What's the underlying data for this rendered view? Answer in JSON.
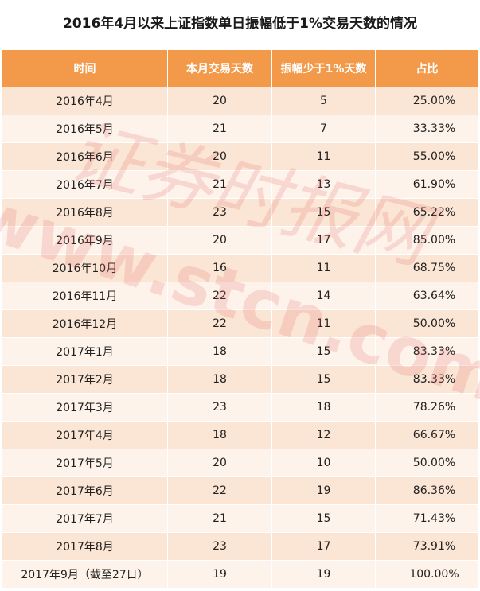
{
  "title": "2016年4月以来上证指数单日振幅低于1%交易天数的情况",
  "headers": [
    "时间",
    "本月交易天数",
    "振幅少于1%天数",
    "占比"
  ],
  "rows": [
    {
      "time": "2016年4月",
      "trading_days": "20",
      "low_amp_days": "5",
      "ratio": "25.00%"
    },
    {
      "time": "2016年5月",
      "trading_days": "21",
      "low_amp_days": "7",
      "ratio": "33.33%"
    },
    {
      "time": "2016年6月",
      "trading_days": "20",
      "low_amp_days": "11",
      "ratio": "55.00%"
    },
    {
      "time": "2016年7月",
      "trading_days": "21",
      "low_amp_days": "13",
      "ratio": "61.90%"
    },
    {
      "time": "2016年8月",
      "trading_days": "23",
      "low_amp_days": "15",
      "ratio": "65.22%"
    },
    {
      "time": "2016年9月",
      "trading_days": "20",
      "low_amp_days": "17",
      "ratio": "85.00%"
    },
    {
      "time": "2016年10月",
      "trading_days": "16",
      "low_amp_days": "11",
      "ratio": "68.75%"
    },
    {
      "time": "2016年11月",
      "trading_days": "22",
      "low_amp_days": "14",
      "ratio": "63.64%"
    },
    {
      "time": "2016年12月",
      "trading_days": "22",
      "low_amp_days": "11",
      "ratio": "50.00%"
    },
    {
      "time": "2017年1月",
      "trading_days": "18",
      "low_amp_days": "15",
      "ratio": "83.33%"
    },
    {
      "time": "2017年2月",
      "trading_days": "18",
      "low_amp_days": "15",
      "ratio": "83.33%"
    },
    {
      "time": "2017年3月",
      "trading_days": "23",
      "low_amp_days": "18",
      "ratio": "78.26%"
    },
    {
      "time": "2017年4月",
      "trading_days": "18",
      "low_amp_days": "12",
      "ratio": "66.67%"
    },
    {
      "time": "2017年5月",
      "trading_days": "20",
      "low_amp_days": "10",
      "ratio": "50.00%"
    },
    {
      "time": "2017年6月",
      "trading_days": "22",
      "low_amp_days": "19",
      "ratio": "86.36%"
    },
    {
      "time": "2017年7月",
      "trading_days": "21",
      "low_amp_days": "15",
      "ratio": "71.43%"
    },
    {
      "time": "2017年8月",
      "trading_days": "23",
      "low_amp_days": "17",
      "ratio": "73.91%"
    },
    {
      "time": "2017年9月（截至27日）",
      "trading_days": "19",
      "low_amp_days": "19",
      "ratio": "100.00%"
    }
  ],
  "watermark": {
    "brand": "证券时报网",
    "url": "www.stcn.com",
    "color": "#e46b6b"
  }
}
